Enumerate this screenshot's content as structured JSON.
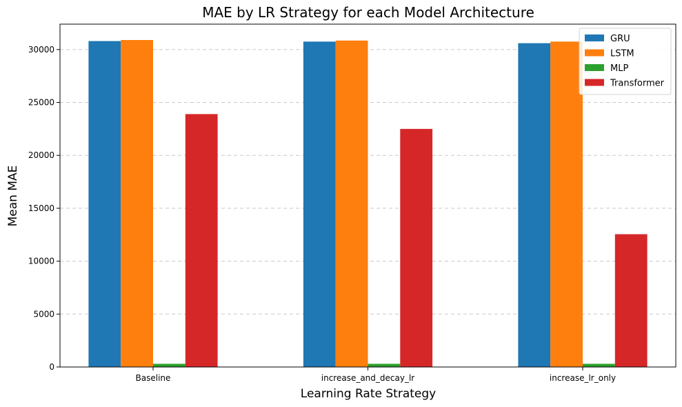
{
  "chart_data": {
    "type": "bar",
    "title": "MAE by LR Strategy for each Model Architecture",
    "xlabel": "Learning Rate Strategy",
    "ylabel": "Mean MAE",
    "categories": [
      "Baseline",
      "increase_and_decay_lr",
      "increase_lr_only"
    ],
    "series": [
      {
        "name": "GRU",
        "color": "#1f77b4",
        "values": [
          30800,
          30750,
          30600
        ]
      },
      {
        "name": "LSTM",
        "color": "#ff7f0e",
        "values": [
          30900,
          30850,
          30750
        ]
      },
      {
        "name": "MLP",
        "color": "#2ca02c",
        "values": [
          300,
          300,
          300
        ]
      },
      {
        "name": "Transformer",
        "color": "#d62728",
        "values": [
          23900,
          22500,
          12550
        ]
      }
    ],
    "ylim": [
      0,
      32400
    ],
    "yticks": [
      0,
      5000,
      10000,
      15000,
      20000,
      25000,
      30000
    ],
    "grid": "y-dashed",
    "legend_position": "top-right"
  }
}
